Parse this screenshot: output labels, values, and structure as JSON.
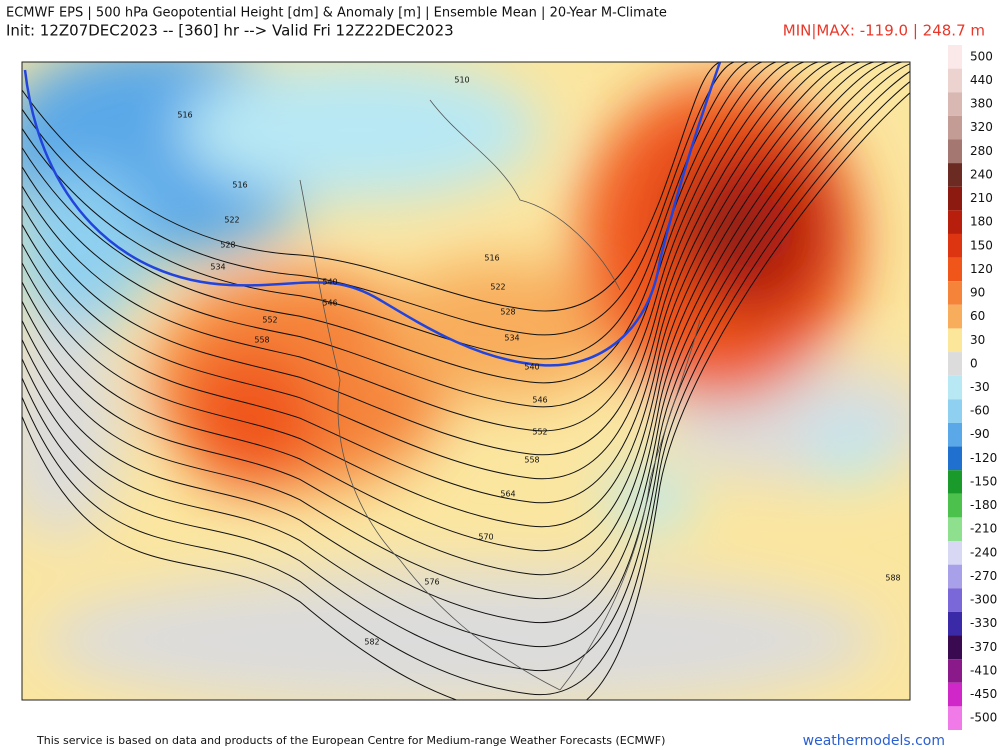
{
  "header": {
    "title": "ECMWF EPS | 500 hPa Geopotential Height [dm] & Anomaly [m] | Ensemble Mean | 20-Year M-Climate",
    "init": "Init: 12Z07DEC2023 -- [360] hr --> Valid Fri 12Z22DEC2023",
    "minmax": "MIN|MAX: -119.0 | 248.7 m"
  },
  "colorbar": {
    "labels": [
      500,
      440,
      380,
      320,
      280,
      240,
      210,
      180,
      150,
      120,
      90,
      60,
      30,
      0,
      -30,
      -60,
      -90,
      -120,
      -150,
      -180,
      -210,
      -240,
      -270,
      -300,
      -330,
      -370,
      -410,
      -450,
      -500
    ],
    "colors": [
      "#fbe9e9",
      "#ecd3d0",
      "#d9b7b2",
      "#c39c95",
      "#a47770",
      "#6b2a22",
      "#8c1a10",
      "#b81e0c",
      "#dd3512",
      "#f0561a",
      "#f5843a",
      "#f8ad5c",
      "#fbe69a",
      "#dcdcdc",
      "#b8e8f4",
      "#8fd0f0",
      "#5aa8e8",
      "#2070d0",
      "#1a9a2a",
      "#4cc24c",
      "#8ee08e",
      "#d8d8f4",
      "#a8a0e8",
      "#7a68d8",
      "#3a2aa8",
      "#3a0a50",
      "#8a1a8a",
      "#d028c8",
      "#f07ae8"
    ]
  },
  "contour_labels": [
    510,
    516,
    516,
    522,
    528,
    534,
    540,
    546,
    552,
    558,
    516,
    522,
    528,
    534,
    540,
    546,
    552,
    558,
    564,
    570,
    576,
    582,
    588
  ],
  "footer": {
    "credit": "This service is based on data and products of the European Centre for Medium-range Weather Forecasts (ECMWF)",
    "site": "weathermodels.com"
  }
}
